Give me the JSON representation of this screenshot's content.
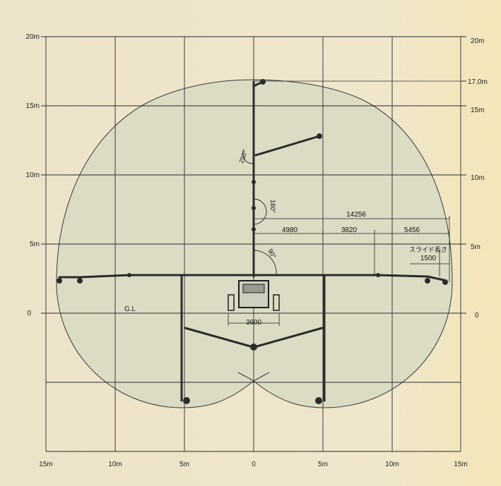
{
  "diagram": {
    "left_axis_labels": [
      "20m",
      "15m",
      "10m",
      "5m",
      "0"
    ],
    "right_axis_labels": [
      "20m",
      "17.0m",
      "15m",
      "10m",
      "5m",
      "0"
    ],
    "bottom_axis_labels": [
      "15m",
      "10m",
      "5m",
      "0",
      "5m",
      "10m",
      "15m"
    ],
    "dimensions": {
      "overall_reach": "14256",
      "reach_segment_1": "4980",
      "reach_segment_2": "3820",
      "reach_segment_3": "5456",
      "slide_length_label": "スライド長さ",
      "slide_length": "1500",
      "truck_width": "3600"
    },
    "angles": {
      "boom_250": "250°",
      "boom_180": "180°",
      "boom_90": "90°"
    },
    "ground_label": "G.L",
    "colors": {
      "background": "#efe7cf",
      "envelope_fill": "#dedfc8",
      "grid": "#2a2a2a",
      "boom": "#2b2b2b"
    }
  }
}
